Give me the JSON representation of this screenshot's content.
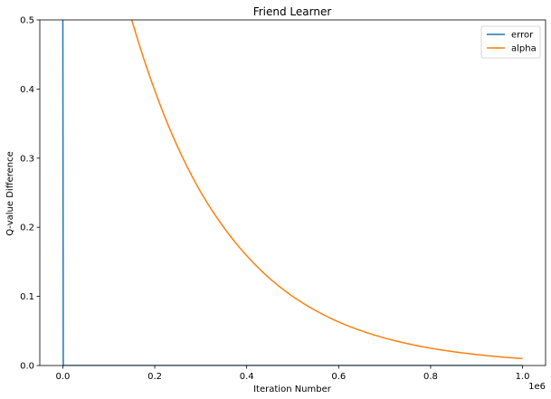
{
  "chart_data": {
    "type": "line",
    "title": "Friend Learner",
    "xlabel": "Iteration Number",
    "ylabel": "Q-value Difference",
    "x_offset_label": "1e6",
    "xlim": [
      -0.05,
      1.05
    ],
    "ylim": [
      0,
      0.5
    ],
    "xticks": [
      0.0,
      0.2,
      0.4,
      0.6,
      0.8,
      1.0
    ],
    "xtick_labels": [
      "0.0",
      "0.2",
      "0.4",
      "0.6",
      "0.8",
      "1.0"
    ],
    "yticks": [
      0.0,
      0.1,
      0.2,
      0.3,
      0.4,
      0.5
    ],
    "ytick_labels": [
      "0.0",
      "0.1",
      "0.2",
      "0.3",
      "0.4",
      "0.5"
    ],
    "grid": false,
    "legend_position": "top-right",
    "series": [
      {
        "name": "error",
        "color": "#1f77b4",
        "x": [
          0.0,
          0.0001,
          0.001,
          0.002,
          0.005,
          0.05,
          0.2,
          0.4,
          0.6,
          0.8,
          1.0
        ],
        "y": [
          0.5,
          0.5,
          0.0,
          0.0,
          0.0,
          0.0,
          0.0,
          0.0,
          0.0,
          0.0,
          0.0
        ]
      },
      {
        "name": "alpha",
        "color": "#ff7f0e",
        "x": [
          0.15,
          0.2,
          0.25,
          0.3,
          0.35,
          0.4,
          0.45,
          0.5,
          0.55,
          0.6,
          0.65,
          0.7,
          0.75,
          0.8,
          0.85,
          0.9,
          0.95,
          1.0
        ],
        "y": [
          0.5,
          0.398,
          0.316,
          0.251,
          0.2,
          0.159,
          0.126,
          0.1,
          0.0795,
          0.0631,
          0.0501,
          0.0398,
          0.0316,
          0.0251,
          0.02,
          0.0159,
          0.0126,
          0.01
        ]
      }
    ]
  }
}
